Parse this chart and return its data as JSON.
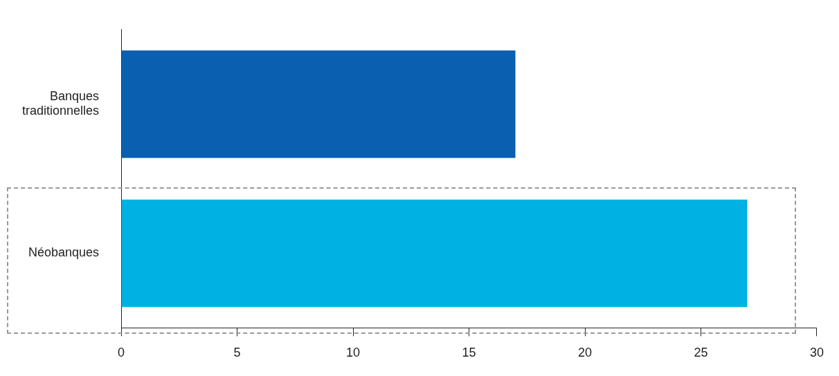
{
  "chart_data": {
    "type": "bar",
    "orientation": "horizontal",
    "categories": [
      "Banques traditionnelles",
      "Néobanques"
    ],
    "values": [
      17,
      27
    ],
    "colors": [
      "#0a5fb0",
      "#00b2e3"
    ],
    "xlim": [
      0,
      30
    ],
    "xticks": [
      0,
      5,
      10,
      15,
      20,
      25,
      30
    ],
    "grid": false
  }
}
